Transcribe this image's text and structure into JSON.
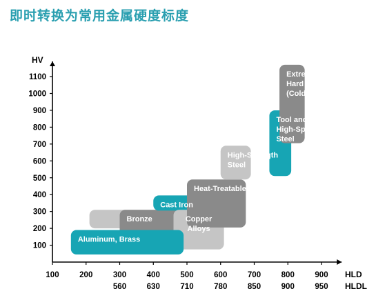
{
  "title": "即时转换为常用金属硬度标度",
  "chart_data": {
    "type": "range-bar",
    "axes": {
      "y_label": "HV",
      "y_ticks": [
        100,
        200,
        300,
        400,
        500,
        600,
        700,
        800,
        900,
        1000,
        1100
      ],
      "x_label_hld": "HLD",
      "x_label_hldl": "HLDL",
      "x_ticks_hld": [
        100,
        200,
        300,
        400,
        500,
        600,
        700,
        800,
        900
      ],
      "x_ticks_hldl": [
        "",
        "",
        "560",
        "630",
        "710",
        "780",
        "850",
        "900",
        "950"
      ]
    },
    "bars": [
      {
        "name": "aluminum-brass",
        "label": [
          "Aluminum, Brass"
        ],
        "hld_range": [
          155,
          490
        ],
        "hv_range": [
          45,
          190
        ],
        "color": "#17a5b4",
        "text_color": "#ffffff",
        "label_align": "left"
      },
      {
        "name": "bronze-light",
        "label": [
          ""
        ],
        "hld_range": [
          210,
          480
        ],
        "hv_range": [
          200,
          310
        ],
        "color": "#c5c5c5",
        "text_color": "#ffffff",
        "label_align": "left"
      },
      {
        "name": "bronze",
        "label": [
          "Bronze"
        ],
        "hld_range": [
          300,
          495
        ],
        "hv_range": [
          110,
          310
        ],
        "color": "#8a8a8a",
        "text_color": "#ffffff",
        "label_align": "left"
      },
      {
        "name": "cast-iron",
        "label": [
          "Cast Iron"
        ],
        "hld_range": [
          400,
          600
        ],
        "hv_range": [
          305,
          395
        ],
        "color": "#17a5b4",
        "text_color": "#ffffff",
        "label_align": "left"
      },
      {
        "name": "copper-alloys",
        "label": [
          "Copper",
          "Alloys"
        ],
        "hld_range": [
          460,
          610
        ],
        "hv_range": [
          75,
          310
        ],
        "color": "#c5c5c5",
        "text_color": "#ffffff",
        "label_align": "center"
      },
      {
        "name": "heat-treatable-steel",
        "label": [
          "Heat-Treatable Steel"
        ],
        "hld_range": [
          500,
          675
        ],
        "hv_range": [
          205,
          490
        ],
        "color": "#8a8a8a",
        "text_color": "#ffffff",
        "label_align": "left"
      },
      {
        "name": "high-strength-steel",
        "label": [
          "High-Strength",
          "Steel"
        ],
        "hld_range": [
          600,
          690
        ],
        "hv_range": [
          490,
          690
        ],
        "color": "#c5c5c5",
        "text_color": "#ffffff",
        "label_align": "left"
      },
      {
        "name": "tool-steel",
        "label": [
          "Tool and",
          "High-Speed",
          "Steel"
        ],
        "hld_range": [
          745,
          810
        ],
        "hv_range": [
          510,
          900
        ],
        "color": "#17a5b4",
        "text_color": "#ffffff",
        "label_align": "left"
      },
      {
        "name": "extremely-hard-steels",
        "label": [
          "Extremely",
          "Hard Steels",
          "(Cold Rolls)"
        ],
        "hld_range": [
          775,
          850
        ],
        "hv_range": [
          705,
          1170
        ],
        "color": "#8a8a8a",
        "text_color": "#ffffff",
        "label_align": "left"
      }
    ]
  }
}
